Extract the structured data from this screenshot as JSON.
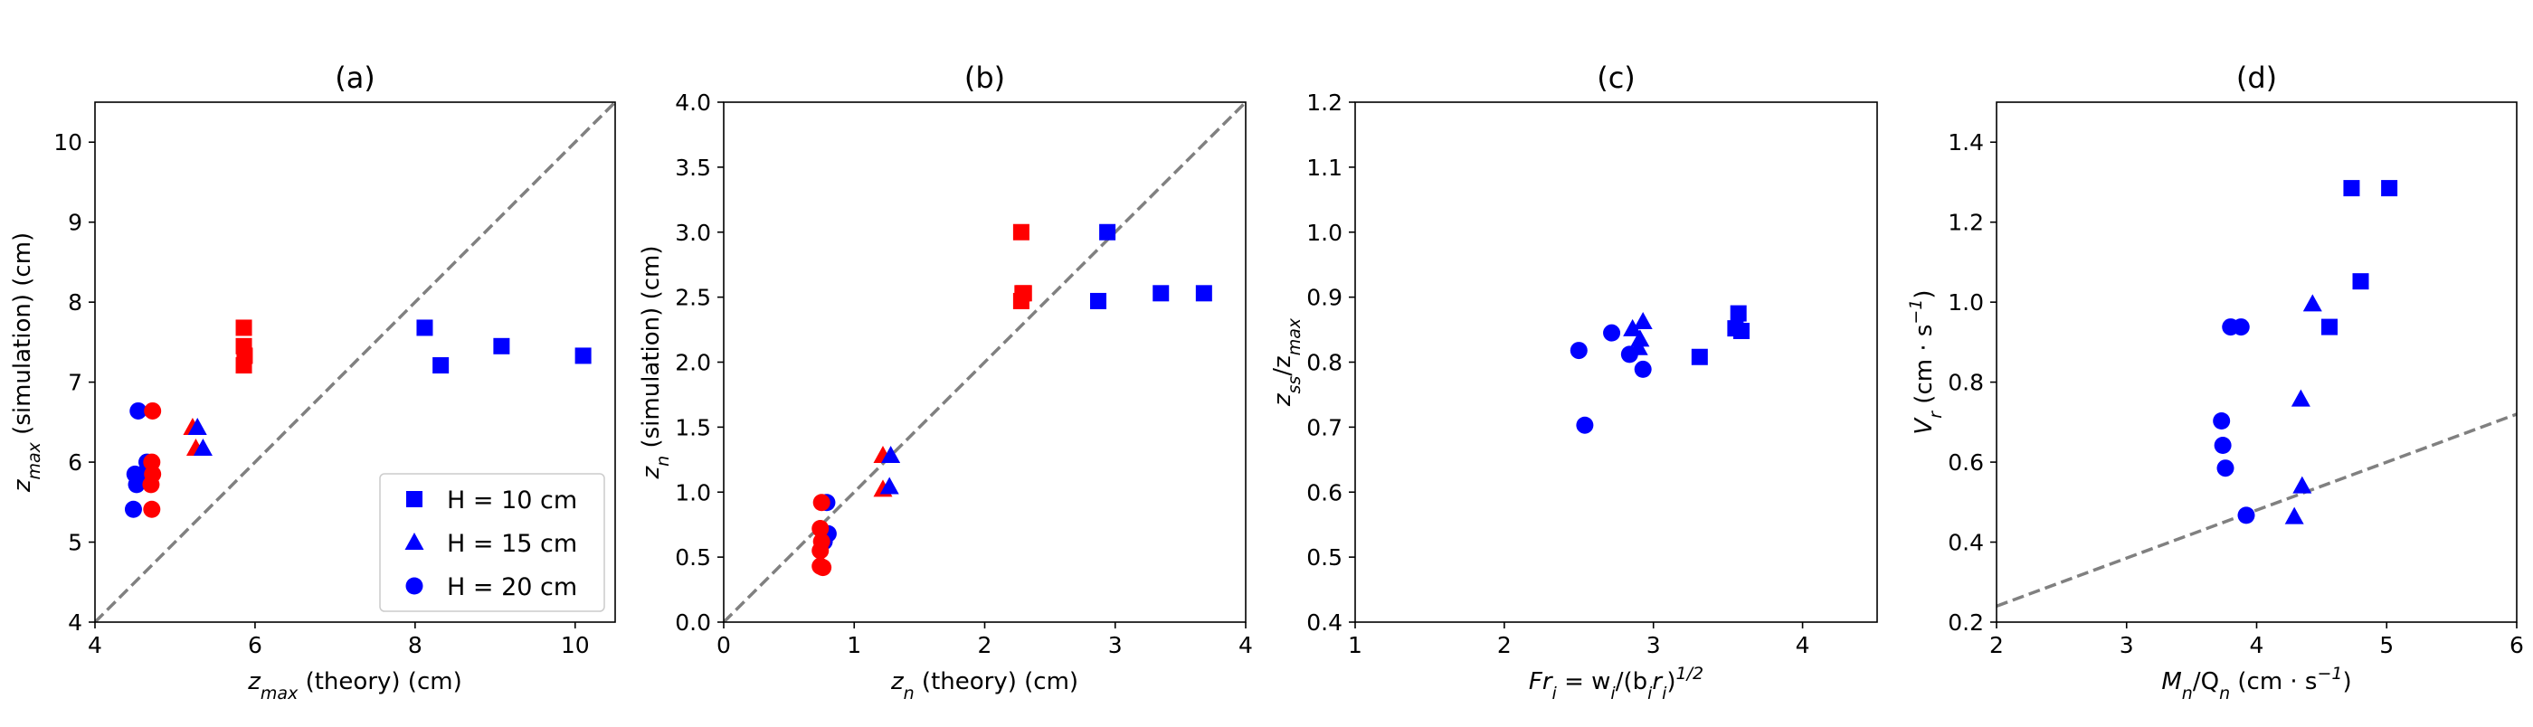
{
  "colors": {
    "blue": "#0000ff",
    "red": "#ff0000",
    "ref": "#808080"
  },
  "chart_data": [
    {
      "type": "scatter",
      "title": "(a)",
      "xlabel": "z_max (theory) (cm)",
      "ylabel": "z_max (simulation) (cm)",
      "xlabel_parts": [
        [
          "z",
          ""
        ],
        [
          "max",
          "sub"
        ],
        [
          " (theory) (cm)",
          ""
        ]
      ],
      "ylabel_parts": [
        [
          "z",
          ""
        ],
        [
          "max",
          "sub"
        ],
        [
          " (simulation) (cm)",
          ""
        ]
      ],
      "xlim": [
        4,
        10.5
      ],
      "ylim": [
        4,
        10.5
      ],
      "xticks": [
        4,
        6,
        8,
        10
      ],
      "yticks": [
        4,
        5,
        6,
        7,
        8,
        9,
        10
      ],
      "ref_line": [
        [
          4,
          4
        ],
        [
          10.5,
          10.5
        ]
      ],
      "legend": {
        "position": "lower-right",
        "entries": [
          {
            "label": "H = 10 cm",
            "marker": "square"
          },
          {
            "label": "H = 15 cm",
            "marker": "triangle"
          },
          {
            "label": "H = 20 cm",
            "marker": "circle"
          }
        ]
      },
      "points": [
        {
          "x": 8.12,
          "y": 7.68,
          "marker": "square",
          "color": "blue"
        },
        {
          "x": 8.32,
          "y": 7.21,
          "marker": "square",
          "color": "blue"
        },
        {
          "x": 9.08,
          "y": 7.45,
          "marker": "square",
          "color": "blue"
        },
        {
          "x": 10.1,
          "y": 7.33,
          "marker": "square",
          "color": "blue"
        },
        {
          "x": 5.86,
          "y": 7.68,
          "marker": "square",
          "color": "red"
        },
        {
          "x": 5.86,
          "y": 7.45,
          "marker": "square",
          "color": "red"
        },
        {
          "x": 5.87,
          "y": 7.33,
          "marker": "square",
          "color": "red"
        },
        {
          "x": 5.86,
          "y": 7.21,
          "marker": "square",
          "color": "red"
        },
        {
          "x": 5.22,
          "y": 6.43,
          "marker": "triangle",
          "color": "red"
        },
        {
          "x": 5.26,
          "y": 6.17,
          "marker": "triangle",
          "color": "red"
        },
        {
          "x": 5.28,
          "y": 6.43,
          "marker": "triangle",
          "color": "blue"
        },
        {
          "x": 5.35,
          "y": 6.17,
          "marker": "triangle",
          "color": "blue"
        },
        {
          "x": 4.54,
          "y": 6.64,
          "marker": "circle",
          "color": "blue"
        },
        {
          "x": 4.65,
          "y": 6.0,
          "marker": "circle",
          "color": "blue"
        },
        {
          "x": 4.6,
          "y": 5.85,
          "marker": "circle",
          "color": "blue"
        },
        {
          "x": 4.5,
          "y": 5.85,
          "marker": "circle",
          "color": "blue"
        },
        {
          "x": 4.52,
          "y": 5.72,
          "marker": "circle",
          "color": "blue"
        },
        {
          "x": 4.48,
          "y": 5.41,
          "marker": "circle",
          "color": "blue"
        },
        {
          "x": 4.72,
          "y": 6.64,
          "marker": "circle",
          "color": "red"
        },
        {
          "x": 4.71,
          "y": 6.0,
          "marker": "circle",
          "color": "red"
        },
        {
          "x": 4.72,
          "y": 5.85,
          "marker": "circle",
          "color": "red"
        },
        {
          "x": 4.7,
          "y": 5.72,
          "marker": "circle",
          "color": "red"
        },
        {
          "x": 4.71,
          "y": 5.41,
          "marker": "circle",
          "color": "red"
        }
      ]
    },
    {
      "type": "scatter",
      "title": "(b)",
      "xlabel": "z_n (theory) (cm)",
      "ylabel": "z_n (simulation) (cm)",
      "xlabel_parts": [
        [
          "z",
          ""
        ],
        [
          "n",
          "sub"
        ],
        [
          " (theory) (cm)",
          ""
        ]
      ],
      "ylabel_parts": [
        [
          "z",
          ""
        ],
        [
          "n",
          "sub"
        ],
        [
          " (simulation) (cm)",
          ""
        ]
      ],
      "xlim": [
        0,
        4
      ],
      "ylim": [
        0,
        4
      ],
      "xticks": [
        0,
        1,
        2,
        3,
        4
      ],
      "yticks": [
        0.0,
        0.5,
        1.0,
        1.5,
        2.0,
        2.5,
        3.0,
        3.5,
        4.0
      ],
      "ytick_decimals": 1,
      "ref_line": [
        [
          0,
          0
        ],
        [
          4,
          4
        ]
      ],
      "points": [
        {
          "x": 2.94,
          "y": 3.0,
          "marker": "square",
          "color": "blue"
        },
        {
          "x": 2.87,
          "y": 2.47,
          "marker": "square",
          "color": "blue"
        },
        {
          "x": 3.35,
          "y": 2.53,
          "marker": "square",
          "color": "blue"
        },
        {
          "x": 3.68,
          "y": 2.53,
          "marker": "square",
          "color": "blue"
        },
        {
          "x": 2.28,
          "y": 3.0,
          "marker": "square",
          "color": "red"
        },
        {
          "x": 2.29,
          "y": 2.53,
          "marker": "square",
          "color": "red"
        },
        {
          "x": 2.3,
          "y": 2.53,
          "marker": "square",
          "color": "red"
        },
        {
          "x": 2.28,
          "y": 2.47,
          "marker": "square",
          "color": "red"
        },
        {
          "x": 1.22,
          "y": 1.28,
          "marker": "triangle",
          "color": "red"
        },
        {
          "x": 1.22,
          "y": 1.02,
          "marker": "triangle",
          "color": "red"
        },
        {
          "x": 1.28,
          "y": 1.28,
          "marker": "triangle",
          "color": "blue"
        },
        {
          "x": 1.27,
          "y": 1.04,
          "marker": "triangle",
          "color": "blue"
        },
        {
          "x": 0.79,
          "y": 0.92,
          "marker": "circle",
          "color": "blue"
        },
        {
          "x": 0.8,
          "y": 0.68,
          "marker": "circle",
          "color": "blue"
        },
        {
          "x": 0.77,
          "y": 0.62,
          "marker": "circle",
          "color": "blue"
        },
        {
          "x": 0.75,
          "y": 0.92,
          "marker": "circle",
          "color": "red"
        },
        {
          "x": 0.74,
          "y": 0.72,
          "marker": "circle",
          "color": "red"
        },
        {
          "x": 0.75,
          "y": 0.62,
          "marker": "circle",
          "color": "red"
        },
        {
          "x": 0.74,
          "y": 0.55,
          "marker": "circle",
          "color": "red"
        },
        {
          "x": 0.74,
          "y": 0.43,
          "marker": "circle",
          "color": "red"
        },
        {
          "x": 0.76,
          "y": 0.42,
          "marker": "circle",
          "color": "red"
        }
      ]
    },
    {
      "type": "scatter",
      "title": "(c)",
      "xlabel": "Fr_i = w_i/(b_i r_i)^1/2",
      "ylabel": "z_ss/z_max",
      "xlabel_parts": [
        [
          "Fr",
          ""
        ],
        [
          "i",
          "sub"
        ],
        [
          " = w",
          ""
        ],
        [
          "i",
          "sub"
        ],
        [
          "/(b",
          ""
        ],
        [
          "i",
          "sub"
        ],
        [
          "r",
          ""
        ],
        [
          "i",
          "sub"
        ],
        [
          ")",
          ""
        ],
        [
          "1/2",
          "sup"
        ]
      ],
      "ylabel_parts": [
        [
          "z",
          ""
        ],
        [
          "ss",
          "sub"
        ],
        [
          "/z",
          ""
        ],
        [
          "max",
          "sub"
        ]
      ],
      "xlim": [
        1,
        4.5
      ],
      "ylim": [
        0.4,
        1.2
      ],
      "xticks": [
        1,
        2,
        3,
        4
      ],
      "yticks": [
        0.4,
        0.5,
        0.6,
        0.7,
        0.8,
        0.9,
        1.0,
        1.1,
        1.2
      ],
      "ytick_decimals": 1,
      "points": [
        {
          "x": 3.57,
          "y": 0.875,
          "marker": "square",
          "color": "blue"
        },
        {
          "x": 3.55,
          "y": 0.852,
          "marker": "square",
          "color": "blue"
        },
        {
          "x": 3.59,
          "y": 0.848,
          "marker": "square",
          "color": "blue"
        },
        {
          "x": 3.31,
          "y": 0.808,
          "marker": "square",
          "color": "blue"
        },
        {
          "x": 2.93,
          "y": 0.862,
          "marker": "triangle",
          "color": "blue"
        },
        {
          "x": 2.86,
          "y": 0.851,
          "marker": "triangle",
          "color": "blue"
        },
        {
          "x": 2.91,
          "y": 0.835,
          "marker": "triangle",
          "color": "blue"
        },
        {
          "x": 2.9,
          "y": 0.822,
          "marker": "triangle",
          "color": "blue"
        },
        {
          "x": 2.5,
          "y": 0.818,
          "marker": "circle",
          "color": "blue"
        },
        {
          "x": 2.72,
          "y": 0.845,
          "marker": "circle",
          "color": "blue"
        },
        {
          "x": 2.84,
          "y": 0.812,
          "marker": "circle",
          "color": "blue"
        },
        {
          "x": 2.93,
          "y": 0.789,
          "marker": "circle",
          "color": "blue"
        },
        {
          "x": 2.54,
          "y": 0.703,
          "marker": "circle",
          "color": "blue"
        }
      ]
    },
    {
      "type": "scatter",
      "title": "(d)",
      "xlabel": "M_n/Q_n (cm·s^-1)",
      "ylabel": "V_r (cm·s^-1)",
      "xlabel_parts": [
        [
          "M",
          ""
        ],
        [
          "n",
          "sub"
        ],
        [
          "/Q",
          ""
        ],
        [
          "n",
          "sub"
        ],
        [
          " (cm · s",
          ""
        ],
        [
          "−1",
          "sup"
        ],
        [
          ")",
          ""
        ]
      ],
      "ylabel_parts": [
        [
          "V",
          ""
        ],
        [
          "r",
          "sub"
        ],
        [
          " (cm · s",
          ""
        ],
        [
          "−1",
          "sup"
        ],
        [
          ")",
          ""
        ]
      ],
      "xlim": [
        2,
        6
      ],
      "ylim": [
        0.2,
        1.5
      ],
      "xticks": [
        2,
        3,
        4,
        5,
        6
      ],
      "yticks": [
        0.2,
        0.4,
        0.6,
        0.8,
        1.0,
        1.2,
        1.4
      ],
      "ytick_decimals": 1,
      "ref_line": [
        [
          2,
          0.24
        ],
        [
          6,
          0.72
        ]
      ],
      "points": [
        {
          "x": 4.73,
          "y": 1.285,
          "marker": "square",
          "color": "blue"
        },
        {
          "x": 5.02,
          "y": 1.285,
          "marker": "square",
          "color": "blue"
        },
        {
          "x": 4.8,
          "y": 1.052,
          "marker": "square",
          "color": "blue"
        },
        {
          "x": 4.56,
          "y": 0.938,
          "marker": "square",
          "color": "blue"
        },
        {
          "x": 4.43,
          "y": 0.995,
          "marker": "triangle",
          "color": "blue"
        },
        {
          "x": 4.34,
          "y": 0.757,
          "marker": "triangle",
          "color": "blue"
        },
        {
          "x": 4.35,
          "y": 0.54,
          "marker": "triangle",
          "color": "blue"
        },
        {
          "x": 4.29,
          "y": 0.463,
          "marker": "triangle",
          "color": "blue"
        },
        {
          "x": 3.8,
          "y": 0.938,
          "marker": "circle",
          "color": "blue"
        },
        {
          "x": 3.88,
          "y": 0.938,
          "marker": "circle",
          "color": "blue"
        },
        {
          "x": 3.73,
          "y": 0.703,
          "marker": "circle",
          "color": "blue"
        },
        {
          "x": 3.74,
          "y": 0.642,
          "marker": "circle",
          "color": "blue"
        },
        {
          "x": 3.76,
          "y": 0.585,
          "marker": "circle",
          "color": "blue"
        },
        {
          "x": 3.92,
          "y": 0.467,
          "marker": "circle",
          "color": "blue"
        }
      ]
    }
  ]
}
